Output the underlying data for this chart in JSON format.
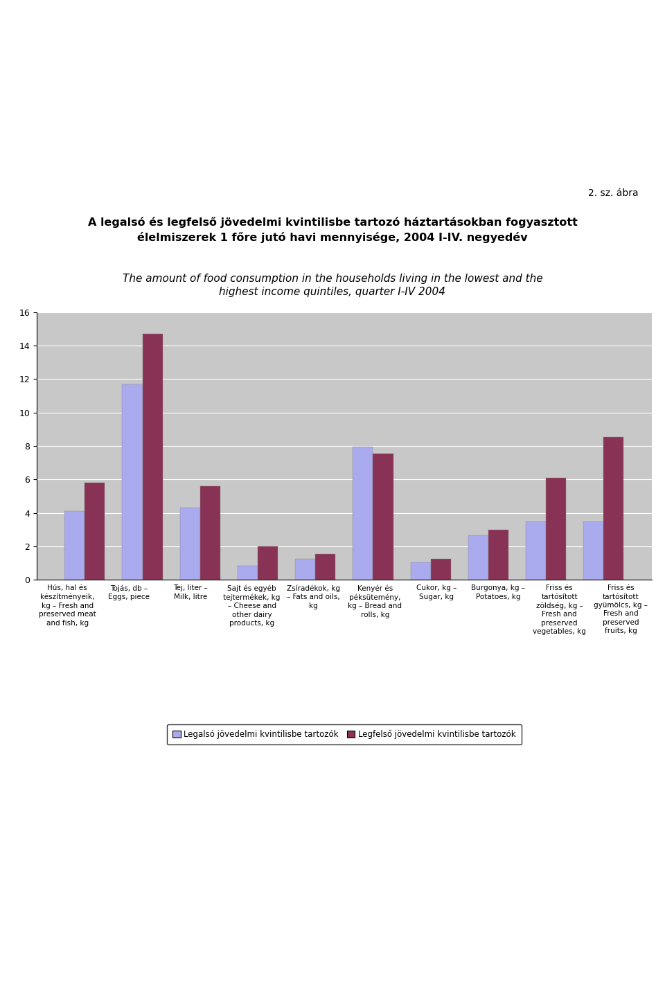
{
  "title_hu_line1": "A legalsó és legfelső jövedelmi kvintilisbe tartozó háztartásokban fogyasztott",
  "title_hu_line2": "élelmiszerek 1 főre jutó havi mennyisége, 2004 I-IV. negyedév",
  "title_en_line1": "The amount of food consumption in the households living in the lowest and the",
  "title_en_line2": "highest income quintiles, quarter I-IV 2004",
  "label_abra": "2. sz. ábra",
  "categories": [
    "Hús, hal és\nkészítményeik,\nkg – Fresh and\npreserved meat\nand fish, kg",
    "Tojás, db –\nEggs, piece",
    "Tej, liter –\nMilk, litre",
    "Sajt és egyéb\ntejtermékek, kg\n– Cheese and\nother dairy\nproducts, kg",
    "Zsíradékok, kg\n– Fats and oils,\nkg",
    "Kenyér és\npéksütemény,\nkg – Bread and\nrolls, kg",
    "Cukor, kg –\nSugar, kg",
    "Burgonya, kg –\nPotatoes, kg",
    "Friss és\ntartósított\nzöldség, kg –\nFresh and\npreserved\nvegetables, kg",
    "Friss és\ntartósított\ngyümölcs, kg –\nFresh and\npreserved\nfruits, kg"
  ],
  "lowest_quintile": [
    4.1,
    11.7,
    4.3,
    0.85,
    1.25,
    7.95,
    1.05,
    2.65,
    3.5,
    3.5
  ],
  "highest_quintile": [
    5.8,
    14.7,
    5.6,
    2.0,
    1.55,
    7.55,
    1.25,
    3.0,
    6.1,
    8.55
  ],
  "color_lowest": "#aaaaee",
  "color_highest": "#883355",
  "ylim": [
    0,
    16
  ],
  "yticks": [
    0,
    2,
    4,
    6,
    8,
    10,
    12,
    14,
    16
  ],
  "legend_lowest": "Legalsó jövedelmi kvintilisbe tartozók",
  "legend_highest": "Legfelső jövedelmi kvintilisbe tartozók",
  "bg_color": "#c8c8c8",
  "fig_bg_color": "#ffffff",
  "bar_width": 0.35,
  "title_fontsize": 11.5,
  "en_title_fontsize": 11,
  "axis_label_fontsize": 7.5,
  "legend_fontsize": 8.5,
  "abra_fontsize": 10
}
